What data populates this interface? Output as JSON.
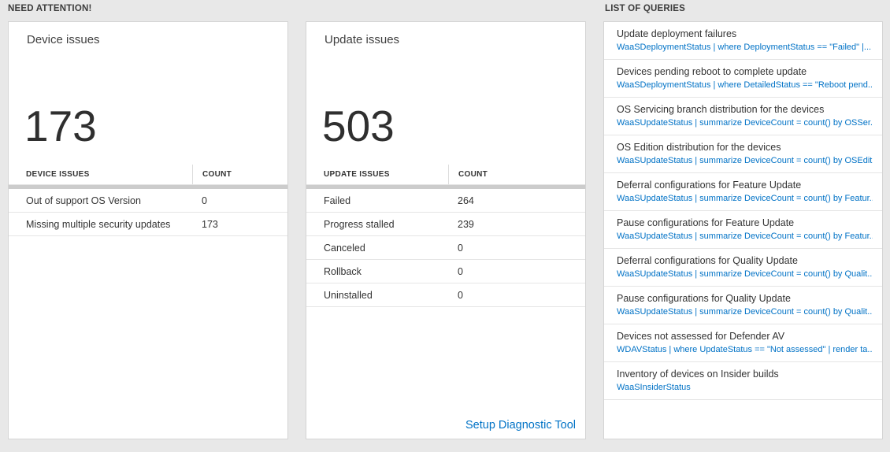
{
  "colors": {
    "background": "#e8e8e8",
    "link": "#0072c6",
    "header_divider_bar": "#cccccc"
  },
  "sections": {
    "need_attention": "NEED ATTENTION!",
    "list_of_queries": "LIST OF QUERIES"
  },
  "device_issues": {
    "title": "Device issues",
    "total": "173",
    "headers": {
      "label": "DEVICE ISSUES",
      "count": "COUNT"
    },
    "rows": [
      {
        "label": "Out of support OS Version",
        "count": "0"
      },
      {
        "label": "Missing multiple security updates",
        "count": "173"
      }
    ]
  },
  "update_issues": {
    "title": "Update issues",
    "total": "503",
    "headers": {
      "label": "UPDATE ISSUES",
      "count": "COUNT"
    },
    "rows": [
      {
        "label": "Failed",
        "count": "264"
      },
      {
        "label": "Progress stalled",
        "count": "239"
      },
      {
        "label": "Canceled",
        "count": "0"
      },
      {
        "label": "Rollback",
        "count": "0"
      },
      {
        "label": "Uninstalled",
        "count": "0"
      }
    ],
    "footer_link": "Setup Diagnostic Tool"
  },
  "queries": [
    {
      "title": "Update deployment failures",
      "query": "WaaSDeploymentStatus | where DeploymentStatus == \"Failed\" |..."
    },
    {
      "title": "Devices pending reboot to complete update",
      "query": "WaaSDeploymentStatus | where DetailedStatus == \"Reboot pend..."
    },
    {
      "title": "OS Servicing branch distribution for the devices",
      "query": "WaaSUpdateStatus | summarize DeviceCount = count() by OSSer..."
    },
    {
      "title": "OS Edition distribution for the devices",
      "query": "WaaSUpdateStatus | summarize DeviceCount = count() by OSEdit..."
    },
    {
      "title": "Deferral configurations for Feature Update",
      "query": "WaaSUpdateStatus | summarize DeviceCount = count() by Featur..."
    },
    {
      "title": "Pause configurations for Feature Update",
      "query": "WaaSUpdateStatus | summarize DeviceCount = count() by Featur..."
    },
    {
      "title": "Deferral configurations for Quality Update",
      "query": "WaaSUpdateStatus | summarize DeviceCount = count() by Qualit..."
    },
    {
      "title": "Pause configurations for Quality Update",
      "query": "WaaSUpdateStatus | summarize DeviceCount = count() by Qualit..."
    },
    {
      "title": "Devices not assessed for Defender AV",
      "query": "WDAVStatus | where UpdateStatus == \"Not assessed\" | render ta..."
    },
    {
      "title": "Inventory of devices on Insider builds",
      "query": "WaaSInsiderStatus"
    }
  ]
}
